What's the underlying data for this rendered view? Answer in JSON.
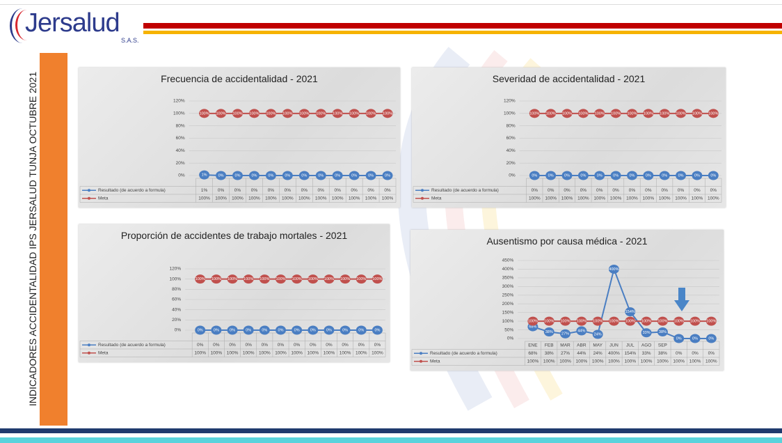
{
  "logo": {
    "name": "Jersalud",
    "suffix": "S.A.S."
  },
  "side_title": "INDICADORES ACCIDENTALIDAD IPS JERSALUD TUNJA OCTUBRE 2021",
  "chart_data": [
    {
      "type": "line",
      "title": "Frecuencia de accidentalidad -  2021",
      "categories": [
        null,
        null,
        null,
        null,
        null,
        null,
        null,
        null,
        null,
        null,
        null,
        null
      ],
      "series": [
        {
          "name": "Resultado (de acuerdo a formula)",
          "color": "#4a7ec2",
          "values": [
            1,
            0,
            0,
            0,
            0,
            0,
            0,
            0,
            0,
            0,
            0,
            0
          ],
          "value_labels": [
            "1%",
            "0%",
            "0%",
            "0%",
            "0%",
            "0%",
            "0%",
            "0%",
            "0%",
            "0%",
            "0%",
            "0%"
          ]
        },
        {
          "name": "Meta",
          "color": "#c0504d",
          "values": [
            100,
            100,
            100,
            100,
            100,
            100,
            100,
            100,
            100,
            100,
            100,
            100
          ],
          "value_labels": [
            "100%",
            "100%",
            "100%",
            "100%",
            "100%",
            "100%",
            "100%",
            "100%",
            "100%",
            "100%",
            "100%",
            "100%"
          ]
        }
      ],
      "ylim": [
        0,
        120
      ],
      "yticks": [
        {
          "value": 0,
          "label": "0%"
        },
        {
          "value": 20,
          "label": "20%"
        },
        {
          "value": 40,
          "label": "40%"
        },
        {
          "value": 60,
          "label": "60%"
        },
        {
          "value": 80,
          "label": "80%"
        },
        {
          "value": 100,
          "label": "100%"
        },
        {
          "value": 120,
          "label": "120%"
        }
      ],
      "grid": true
    },
    {
      "type": "line",
      "title": "Severidad de accidentalidad -  2021",
      "categories": [
        null,
        null,
        null,
        null,
        null,
        null,
        null,
        null,
        null,
        null,
        null,
        null
      ],
      "series": [
        {
          "name": "Resultado (de acuerdo a formula)",
          "color": "#4a7ec2",
          "values": [
            0,
            0,
            0,
            0,
            0,
            0,
            0,
            0,
            0,
            0,
            0,
            0
          ],
          "value_labels": [
            "0%",
            "0%",
            "0%",
            "0%",
            "0%",
            "0%",
            "0%",
            "0%",
            "0%",
            "0%",
            "0%",
            "0%"
          ]
        },
        {
          "name": "Meta",
          "color": "#c0504d",
          "values": [
            100,
            100,
            100,
            100,
            100,
            100,
            100,
            100,
            100,
            100,
            100,
            100
          ],
          "value_labels": [
            "100%",
            "100%",
            "100%",
            "100%",
            "100%",
            "100%",
            "100%",
            "100%",
            "100%",
            "100%",
            "100%",
            "100%"
          ]
        }
      ],
      "ylim": [
        0,
        120
      ],
      "yticks": [
        {
          "value": 0,
          "label": "0%"
        },
        {
          "value": 20,
          "label": "20%"
        },
        {
          "value": 40,
          "label": "40%"
        },
        {
          "value": 60,
          "label": "60%"
        },
        {
          "value": 80,
          "label": "80%"
        },
        {
          "value": 100,
          "label": "100%"
        },
        {
          "value": 120,
          "label": "120%"
        }
      ],
      "grid": true
    },
    {
      "type": "line",
      "title": "Proporción de accidentes de trabajo mortales    -  2021",
      "categories": [
        null,
        null,
        null,
        null,
        null,
        null,
        null,
        null,
        null,
        null,
        null,
        null
      ],
      "series": [
        {
          "name": "Resultado (de acuerdo a formula)",
          "color": "#4a7ec2",
          "values": [
            0,
            0,
            0,
            0,
            0,
            0,
            0,
            0,
            0,
            0,
            0,
            0
          ],
          "value_labels": [
            "0%",
            "0%",
            "0%",
            "0%",
            "0%",
            "0%",
            "0%",
            "0%",
            "0%",
            "0%",
            "0%",
            "0%"
          ]
        },
        {
          "name": "Meta",
          "color": "#c0504d",
          "values": [
            100,
            100,
            100,
            100,
            100,
            100,
            100,
            100,
            100,
            100,
            100,
            100
          ],
          "value_labels": [
            "100%",
            "100%",
            "100%",
            "100%",
            "100%",
            "100%",
            "100%",
            "100%",
            "100%",
            "100%",
            "100%",
            "100%"
          ]
        }
      ],
      "ylim": [
        0,
        120
      ],
      "yticks": [
        {
          "value": 0,
          "label": "0%"
        },
        {
          "value": 20,
          "label": "20%"
        },
        {
          "value": 40,
          "label": "40%"
        },
        {
          "value": 60,
          "label": "60%"
        },
        {
          "value": 80,
          "label": "80%"
        },
        {
          "value": 100,
          "label": "100%"
        },
        {
          "value": 120,
          "label": "120%"
        }
      ],
      "grid": true
    },
    {
      "type": "line",
      "title": "Ausentismo por causa médica -  2021",
      "categories": [
        "ENE",
        "FEB",
        "MAR",
        "ABR",
        "MAY",
        "JUN",
        "JUL",
        "AGO",
        "SEP",
        null,
        null,
        null
      ],
      "series": [
        {
          "name": "Resultado (de acuerdo a formula)",
          "color": "#4a7ec2",
          "values": [
            68,
            38,
            27,
            44,
            24,
            400,
            154,
            33,
            38,
            0,
            0,
            0
          ],
          "value_labels": [
            "68%",
            "38%",
            "27%",
            "44%",
            "24%",
            "400%",
            "154%",
            "33%",
            "38%",
            "0%",
            "0%",
            "0%"
          ]
        },
        {
          "name": "Meta",
          "color": "#c0504d",
          "values": [
            100,
            100,
            100,
            100,
            100,
            100,
            100,
            100,
            100,
            100,
            100,
            100
          ],
          "value_labels": [
            "100%",
            "100%",
            "100%",
            "100%",
            "100%",
            "100%",
            "100%",
            "100%",
            "100%",
            "100%",
            "100%",
            "100%"
          ]
        }
      ],
      "ylim": [
        0,
        450
      ],
      "yticks": [
        {
          "value": 0,
          "label": "0%"
        },
        {
          "value": 50,
          "label": "50%"
        },
        {
          "value": 100,
          "label": "100%"
        },
        {
          "value": 150,
          "label": "150%"
        },
        {
          "value": 200,
          "label": "200%"
        },
        {
          "value": 250,
          "label": "250%"
        },
        {
          "value": 300,
          "label": "300%"
        },
        {
          "value": 350,
          "label": "350%"
        },
        {
          "value": 400,
          "label": "400%"
        },
        {
          "value": 450,
          "label": "450%"
        }
      ],
      "grid": true
    }
  ]
}
